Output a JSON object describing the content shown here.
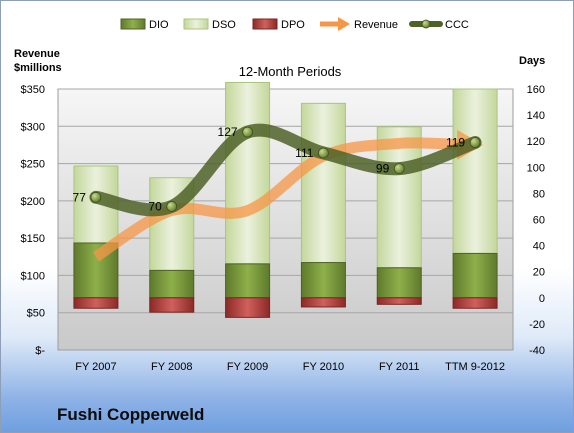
{
  "chart_data": {
    "type": "bar",
    "title": "12-Month Periods",
    "company": "Fushi Copperweld",
    "categories": [
      "FY 2007",
      "FY 2008",
      "FY 2009",
      "FY 2010",
      "FY 2011",
      "TTM 9-2012"
    ],
    "left_axis": {
      "label_line1": "Revenue",
      "label_line2": "$millions",
      "ylim": [
        0,
        350
      ],
      "ticks": [
        0,
        50,
        100,
        150,
        200,
        250,
        300,
        350
      ],
      "tick_labels": [
        "$-",
        "$50",
        "$100",
        "$150",
        "$200",
        "$250",
        "$300",
        "$350"
      ]
    },
    "right_axis": {
      "label": "Days",
      "ylim": [
        -40,
        160
      ],
      "ticks": [
        -40,
        -20,
        0,
        20,
        40,
        60,
        80,
        100,
        120,
        140,
        160
      ]
    },
    "series": [
      {
        "name": "DIO",
        "axis": "days",
        "kind": "stacked-bar",
        "values": [
          42,
          21,
          26,
          27,
          23,
          34
        ]
      },
      {
        "name": "DSO",
        "axis": "days",
        "kind": "stacked-bar",
        "values": [
          59,
          71,
          139,
          122,
          108,
          126
        ]
      },
      {
        "name": "DPO",
        "axis": "days",
        "kind": "negative-bar",
        "values": [
          -8,
          -11,
          -15,
          -7,
          -5,
          -8
        ]
      },
      {
        "name": "Revenue",
        "axis": "revenue",
        "kind": "line",
        "values": [
          125,
          187,
          187,
          260,
          277,
          275
        ]
      },
      {
        "name": "CCC",
        "axis": "days",
        "kind": "line",
        "values": [
          77,
          70,
          127,
          111,
          99,
          119
        ]
      }
    ],
    "ccc_labels": [
      "77",
      "70",
      "127",
      "111",
      "99",
      "119"
    ],
    "legend_position": "top",
    "grid": true,
    "colors": {
      "DIO": "#77933c",
      "DSO": "#d7e4bd",
      "DPO": "#c0504d",
      "Revenue": "#f79646",
      "CCC": "#4f6228"
    }
  }
}
